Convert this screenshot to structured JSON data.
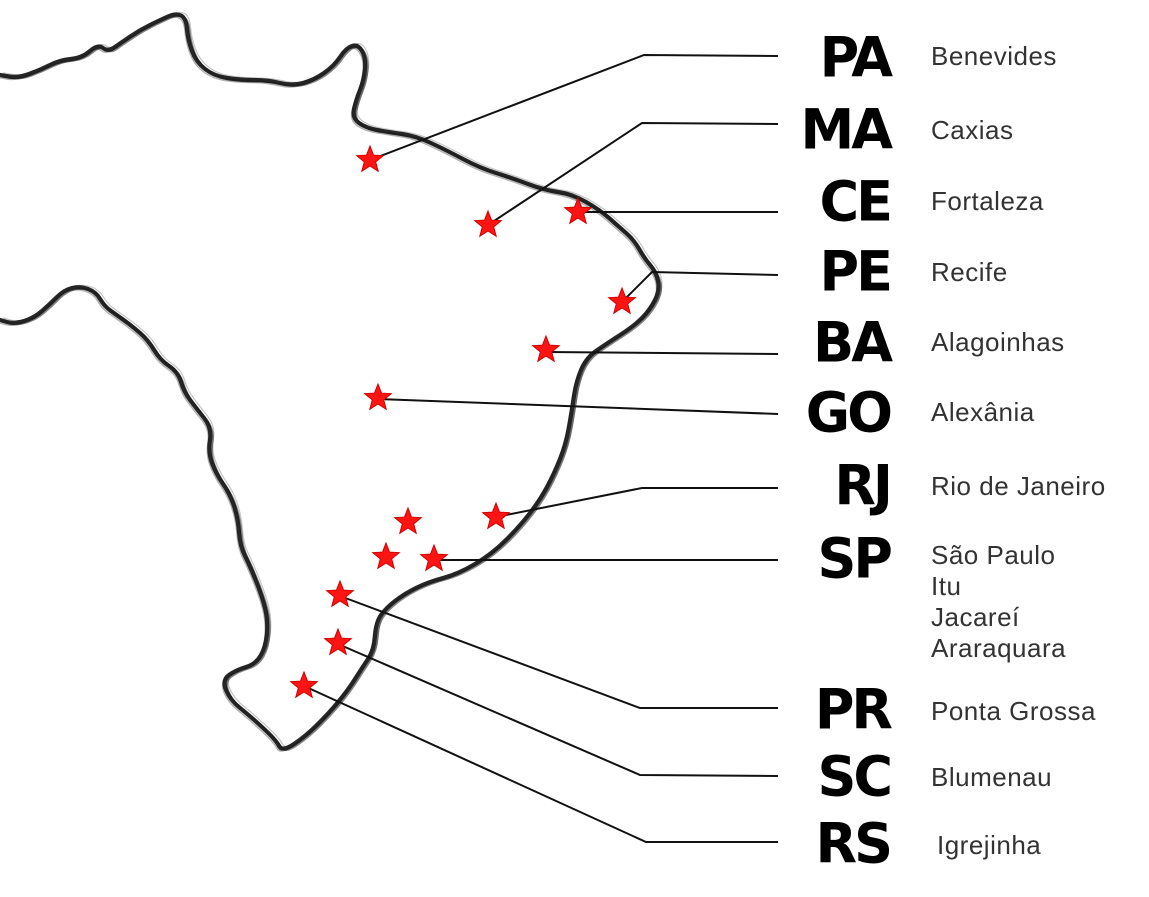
{
  "colors": {
    "outline": "#1a1a1a",
    "star": "#ff1414",
    "leader": "#111111",
    "city_text": "#333333",
    "code_text": "#000000"
  },
  "markers": [
    {
      "state": "PA",
      "cities": [
        "Benevides"
      ]
    },
    {
      "state": "MA",
      "cities": [
        "Caxias"
      ]
    },
    {
      "state": "CE",
      "cities": [
        "Fortaleza"
      ]
    },
    {
      "state": "PE",
      "cities": [
        "Recife"
      ]
    },
    {
      "state": "BA",
      "cities": [
        "Alagoinhas"
      ]
    },
    {
      "state": "GO",
      "cities": [
        "Alexânia"
      ]
    },
    {
      "state": "RJ",
      "cities": [
        "Rio de Janeiro"
      ]
    },
    {
      "state": "SP",
      "cities": [
        "São Paulo",
        "Itu",
        "Jacareí",
        "Araraquara"
      ]
    },
    {
      "state": "PR",
      "cities": [
        "Ponta Grossa"
      ]
    },
    {
      "state": "SC",
      "cities": [
        "Blumenau"
      ]
    },
    {
      "state": "RS",
      "cities": [
        "Igrejinha"
      ]
    }
  ]
}
